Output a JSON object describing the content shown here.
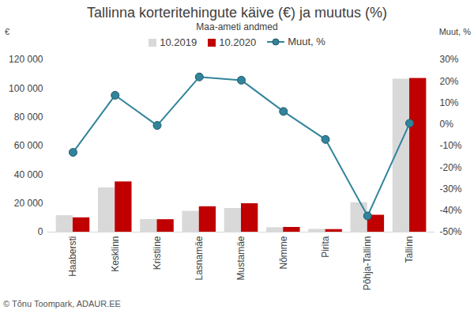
{
  "chart_data": {
    "type": "bar",
    "title": "Tallinna korteritehingute käive (€) ja muutus (%)",
    "subtitle": "Maa-ameti andmed",
    "ylabel": "€",
    "y2label": "Muut, %",
    "source": "© Tõnu Toompark, ADAUR.EE",
    "categories": [
      "Haabersti",
      "Kesklinn",
      "Kristiine",
      "Lasnamäe",
      "Mustamäe",
      "Nõmme",
      "Pirita",
      "Põhja-Tallinn",
      "Tallinn"
    ],
    "series": [
      {
        "name": "10.2019",
        "color": "#d9d9d9",
        "values": [
          11500,
          30800,
          8800,
          14500,
          16500,
          3100,
          2000,
          20500,
          106500
        ]
      },
      {
        "name": "10.2020",
        "color": "#c00000",
        "values": [
          10000,
          35000,
          8700,
          17700,
          19800,
          3300,
          1800,
          11800,
          107000
        ]
      },
      {
        "name": "Muut, %",
        "type": "line",
        "axis": "y2",
        "color": "#31849b",
        "marker": "circle",
        "values": [
          -13,
          13.5,
          -0.5,
          22,
          20.5,
          6,
          -7,
          -42.5,
          0.5
        ]
      }
    ],
    "ylim": [
      0,
      120000
    ],
    "yticks": [
      0,
      {
        "value": 20000,
        "label": "20 000"
      },
      {
        "value": 40000,
        "label": "40 000"
      },
      {
        "value": 60000,
        "label": "60 000"
      },
      {
        "value": 80000,
        "label": "80 000"
      },
      {
        "value": 100000,
        "label": "100 000"
      },
      {
        "value": 120000,
        "label": "120 000"
      }
    ],
    "y2lim": [
      -50,
      30
    ],
    "y2ticks": [
      {
        "value": -50,
        "label": "-50%"
      },
      {
        "value": -40,
        "label": "-40%"
      },
      {
        "value": -30,
        "label": "-30%"
      },
      {
        "value": -20,
        "label": "-20%"
      },
      {
        "value": -10,
        "label": "-10%"
      },
      {
        "value": 0,
        "label": "0%"
      },
      {
        "value": 10,
        "label": "10%"
      },
      {
        "value": 20,
        "label": "20%"
      },
      {
        "value": 30,
        "label": "30%"
      }
    ],
    "grid": false,
    "legend": "top"
  }
}
